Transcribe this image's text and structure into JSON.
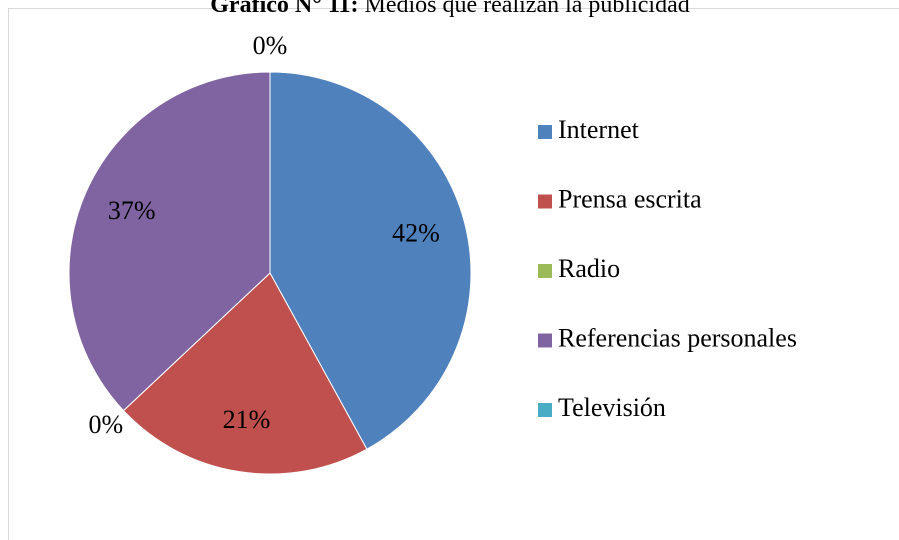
{
  "chart_data": {
    "type": "pie",
    "title_prefix": "Gráfico N° 11:",
    "title": "Medios que realizan la publicidad",
    "categories": [
      "Internet",
      "Prensa escrita",
      "Radio",
      "Referencias personales",
      "Televisión"
    ],
    "values": [
      42,
      21,
      0,
      37,
      0
    ],
    "value_labels": [
      "42%",
      "21%",
      "0%",
      "37%",
      "0%"
    ],
    "colors": [
      "#4f81bd",
      "#c0504d",
      "#9bbb59",
      "#8064a2",
      "#4bacc6"
    ],
    "legend": "right"
  }
}
